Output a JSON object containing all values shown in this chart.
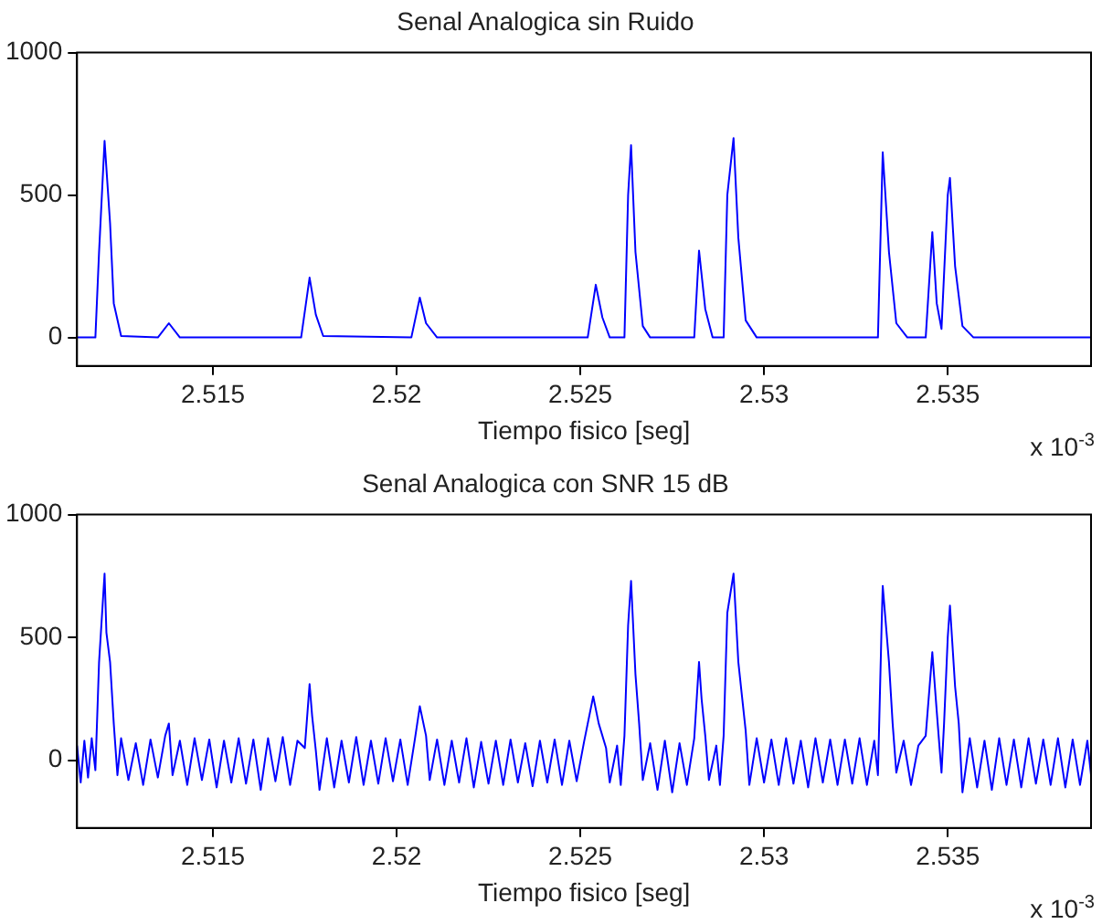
{
  "chart_data": [
    {
      "type": "line",
      "title": "Senal Analogica sin Ruido",
      "xlabel": "Tiempo fisico [seg]",
      "annotations": [
        "x 10$^{-3}$"
      ],
      "xlim": [
        2.5113,
        2.5389
      ],
      "xticks": [
        2.515,
        2.52,
        2.525,
        2.53,
        2.535
      ],
      "ylim": [
        -100,
        1000
      ],
      "yticks": [
        0,
        500,
        1000
      ],
      "grid": false,
      "legend": false,
      "marker": "none",
      "line_style": "solid",
      "series": [
        {
          "color": "#0000ff",
          "x": [
            2.5113,
            2.5118,
            2.5119,
            2.51205,
            2.5122,
            2.5123,
            2.5125,
            2.5135,
            2.5138,
            2.5141,
            2.5174,
            2.51763,
            2.5178,
            2.518,
            2.5204,
            2.52063,
            2.5208,
            2.5211,
            2.5252,
            2.52542,
            2.5256,
            2.5258,
            2.5262,
            2.5263,
            2.52638,
            2.5265,
            2.5267,
            2.5269,
            2.5281,
            2.52823,
            2.5284,
            2.5286,
            2.5289,
            2.529,
            2.52917,
            2.5293,
            2.5295,
            2.5298,
            2.5331,
            2.5332,
            2.53323,
            2.5334,
            2.5336,
            2.5339,
            2.5344,
            2.53458,
            2.5347,
            2.53483,
            2.535,
            2.53506,
            2.5352,
            2.5354,
            2.5357,
            2.5389
          ],
          "values": [
            0,
            0,
            300,
            690,
            400,
            120,
            5,
            0,
            50,
            0,
            0,
            210,
            80,
            5,
            0,
            140,
            50,
            0,
            0,
            185,
            70,
            0,
            0,
            500,
            675,
            300,
            40,
            0,
            0,
            305,
            100,
            0,
            0,
            500,
            700,
            350,
            60,
            0,
            0,
            500,
            650,
            300,
            50,
            0,
            0,
            370,
            120,
            30,
            500,
            560,
            250,
            40,
            0,
            0
          ]
        }
      ]
    },
    {
      "type": "line",
      "title": "Senal Analogica con SNR 15 dB",
      "xlabel": "Tiempo fisico [seg]",
      "annotations": [
        "x 10$^{-3}$"
      ],
      "xlim": [
        2.5113,
        2.5389
      ],
      "xticks": [
        2.515,
        2.52,
        2.525,
        2.53,
        2.535
      ],
      "ylim": [
        -275,
        1000
      ],
      "yticks": [
        0,
        500,
        1000
      ],
      "grid": false,
      "legend": false,
      "marker": "none",
      "line_style": "solid",
      "series": [
        {
          "color": "#0000ff",
          "x": [
            2.5113,
            2.5114,
            2.5115,
            2.5116,
            2.5117,
            2.5118,
            2.5119,
            2.51205,
            2.5121,
            2.5122,
            2.5123,
            2.5124,
            2.5125,
            2.5127,
            2.5129,
            2.5131,
            2.5133,
            2.5135,
            2.5137,
            2.5138,
            2.5139,
            2.5141,
            2.5143,
            2.5145,
            2.5147,
            2.5149,
            2.5151,
            2.5153,
            2.5155,
            2.5157,
            2.5159,
            2.5161,
            2.5163,
            2.5165,
            2.5167,
            2.5169,
            2.5171,
            2.5173,
            2.5175,
            2.51763,
            2.5177,
            2.5178,
            2.5179,
            2.5181,
            2.5183,
            2.5185,
            2.5187,
            2.5189,
            2.5191,
            2.5193,
            2.5195,
            2.5197,
            2.5199,
            2.5201,
            2.5203,
            2.5205,
            2.52063,
            2.5208,
            2.5209,
            2.5211,
            2.5213,
            2.5215,
            2.5217,
            2.5219,
            2.5221,
            2.5223,
            2.5225,
            2.5227,
            2.5229,
            2.5231,
            2.5233,
            2.5235,
            2.5237,
            2.5239,
            2.5241,
            2.5243,
            2.5245,
            2.5247,
            2.5249,
            2.5251,
            2.52535,
            2.5255,
            2.5257,
            2.5258,
            2.526,
            2.5261,
            2.5262,
            2.5263,
            2.52638,
            2.5265,
            2.5266,
            2.5267,
            2.5269,
            2.5271,
            2.5273,
            2.5275,
            2.5277,
            2.5279,
            2.5281,
            2.52823,
            2.5283,
            2.5284,
            2.5285,
            2.5287,
            2.5288,
            2.5289,
            2.529,
            2.52917,
            2.5293,
            2.5295,
            2.5296,
            2.5298,
            2.53,
            2.5302,
            2.5304,
            2.5306,
            2.5308,
            2.531,
            2.5312,
            2.5314,
            2.5316,
            2.5318,
            2.532,
            2.5322,
            2.5324,
            2.5326,
            2.5328,
            2.533,
            2.5331,
            2.5332,
            2.53323,
            2.5334,
            2.5335,
            2.5336,
            2.5338,
            2.534,
            2.5342,
            2.5344,
            2.53458,
            2.5347,
            2.53483,
            2.5349,
            2.535,
            2.53506,
            2.5352,
            2.5353,
            2.5354,
            2.5356,
            2.5358,
            2.536,
            2.5362,
            2.5364,
            2.5366,
            2.5368,
            2.537,
            2.5372,
            2.5374,
            2.5376,
            2.5378,
            2.538,
            2.5382,
            2.5384,
            2.5386,
            2.5388,
            2.5389
          ],
          "values": [
            60,
            -90,
            80,
            -70,
            90,
            -40,
            400,
            760,
            520,
            400,
            150,
            -60,
            90,
            -80,
            70,
            -100,
            85,
            -70,
            100,
            150,
            -60,
            80,
            -100,
            90,
            -80,
            85,
            -110,
            80,
            -90,
            90,
            -95,
            85,
            -120,
            90,
            -85,
            95,
            -100,
            80,
            50,
            310,
            180,
            40,
            -120,
            90,
            -110,
            80,
            -90,
            95,
            -100,
            80,
            -95,
            90,
            -85,
            85,
            -100,
            90,
            220,
            100,
            -80,
            85,
            -100,
            80,
            -90,
            90,
            -110,
            75,
            -95,
            80,
            -100,
            85,
            -90,
            70,
            -105,
            80,
            -90,
            85,
            -100,
            80,
            -85,
            75,
            260,
            150,
            50,
            -90,
            60,
            -100,
            100,
            550,
            730,
            350,
            150,
            -80,
            70,
            -120,
            80,
            -130,
            70,
            -100,
            90,
            400,
            250,
            100,
            -80,
            60,
            -100,
            100,
            600,
            760,
            400,
            120,
            -100,
            90,
            -90,
            85,
            -100,
            90,
            -95,
            80,
            -110,
            90,
            -90,
            85,
            -100,
            85,
            -95,
            90,
            -100,
            80,
            -60,
            550,
            710,
            400,
            150,
            -50,
            80,
            -100,
            60,
            100,
            440,
            200,
            -50,
            150,
            500,
            630,
            300,
            150,
            -130,
            90,
            -110,
            80,
            -120,
            90,
            -100,
            85,
            -110,
            90,
            -95,
            85,
            -100,
            90,
            -110,
            85,
            -100,
            80,
            -60
          ]
        }
      ]
    }
  ]
}
